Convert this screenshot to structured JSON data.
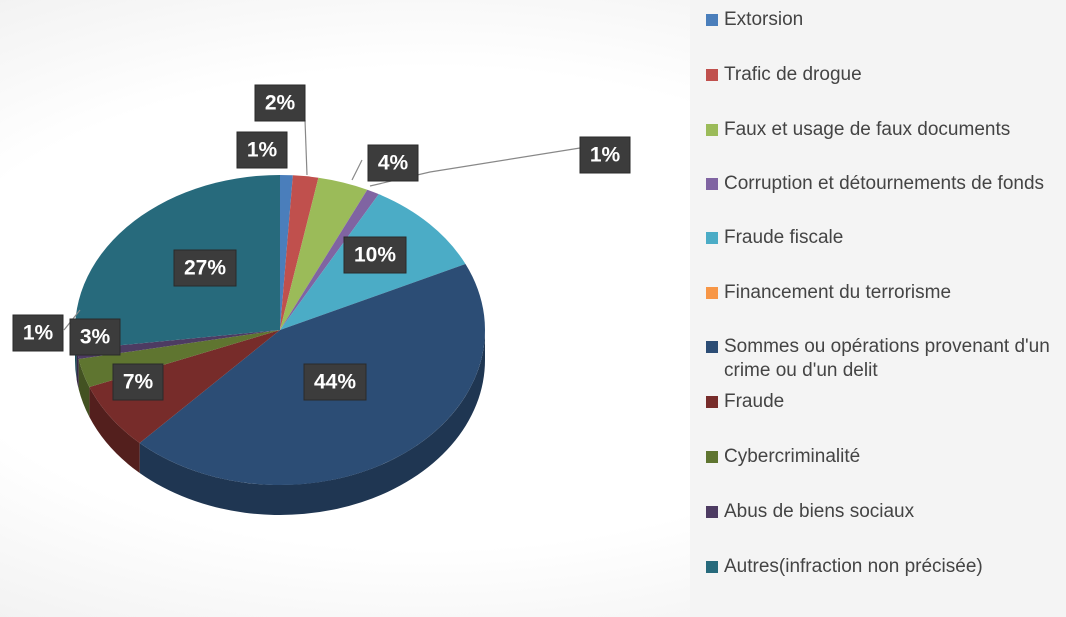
{
  "chart_data": {
    "type": "pie",
    "categories": [
      "Extorsion",
      "Trafic de drogue",
      "Faux et usage de faux documents",
      "Corruption et détournements de fonds",
      "Fraude fiscale",
      "Financement du terrorisme",
      "Sommes ou opérations provenant d'un crime ou d'un delit",
      "Fraude",
      "Cybercriminalité",
      "Abus de biens sociaux",
      "Autres(infraction non précisée)"
    ],
    "values": [
      1,
      2,
      4,
      1,
      10,
      0,
      44,
      7,
      3,
      1,
      27
    ],
    "value_labels": [
      "1%",
      "2%",
      "4%",
      "1%",
      "10%",
      null,
      "44%",
      "7%",
      "3%",
      "1%",
      "27%"
    ],
    "colors": [
      "#4a7ebb",
      "#c0504d",
      "#9bbb59",
      "#8064a2",
      "#4bacc6",
      "#f79646",
      "#2c4d75",
      "#772c2a",
      "#5f7530",
      "#4d3b62",
      "#276a7c"
    ],
    "legend": "right"
  }
}
